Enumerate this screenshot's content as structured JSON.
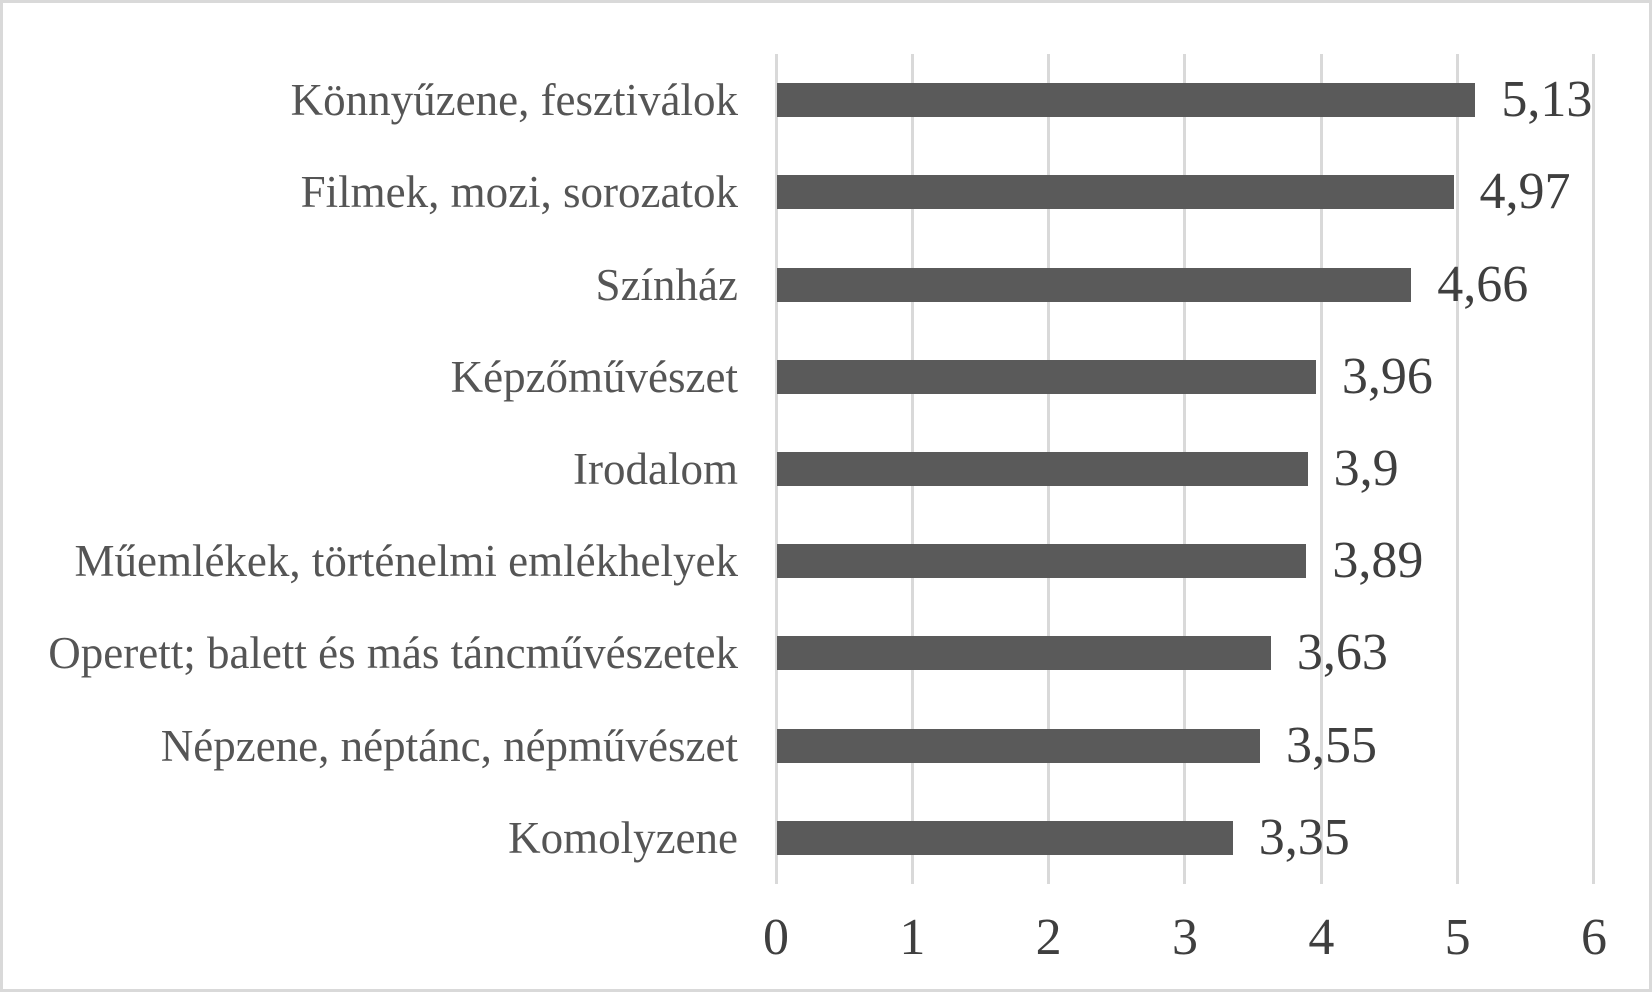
{
  "chart_data": {
    "type": "bar",
    "orientation": "horizontal",
    "title": "",
    "xlabel": "",
    "ylabel": "",
    "categories": [
      "Könnyűzene, fesztiválok",
      "Filmek, mozi, sorozatok",
      "Színház",
      "Képzőművészet",
      "Irodalom",
      "Műemlékek, történelmi emlékhelyek",
      "Operett; balett és más táncművészetek",
      "Népzene, néptánc, népművészet",
      "Komolyzene"
    ],
    "values": [
      5.13,
      4.97,
      4.66,
      3.96,
      3.9,
      3.89,
      3.63,
      3.55,
      3.35
    ],
    "value_labels": [
      "5,13",
      "4,97",
      "4,66",
      "3,96",
      "3,9",
      "3,89",
      "3,63",
      "3,55",
      "3,35"
    ],
    "xlim": [
      0,
      6
    ],
    "x_ticks": [
      0,
      1,
      2,
      3,
      4,
      5,
      6
    ],
    "x_tick_labels": [
      "0",
      "1",
      "2",
      "3",
      "4",
      "5",
      "6"
    ],
    "grid": "vertical-only",
    "legend": "none",
    "colors": {
      "bar": "#5a5a5a",
      "gridline": "#d9d9d9",
      "category_text": "#555555",
      "value_text": "#3f3f3f",
      "axis_text": "#3f3f3f",
      "background": "#ffffff",
      "frame_border": "#d9d9d9"
    }
  }
}
